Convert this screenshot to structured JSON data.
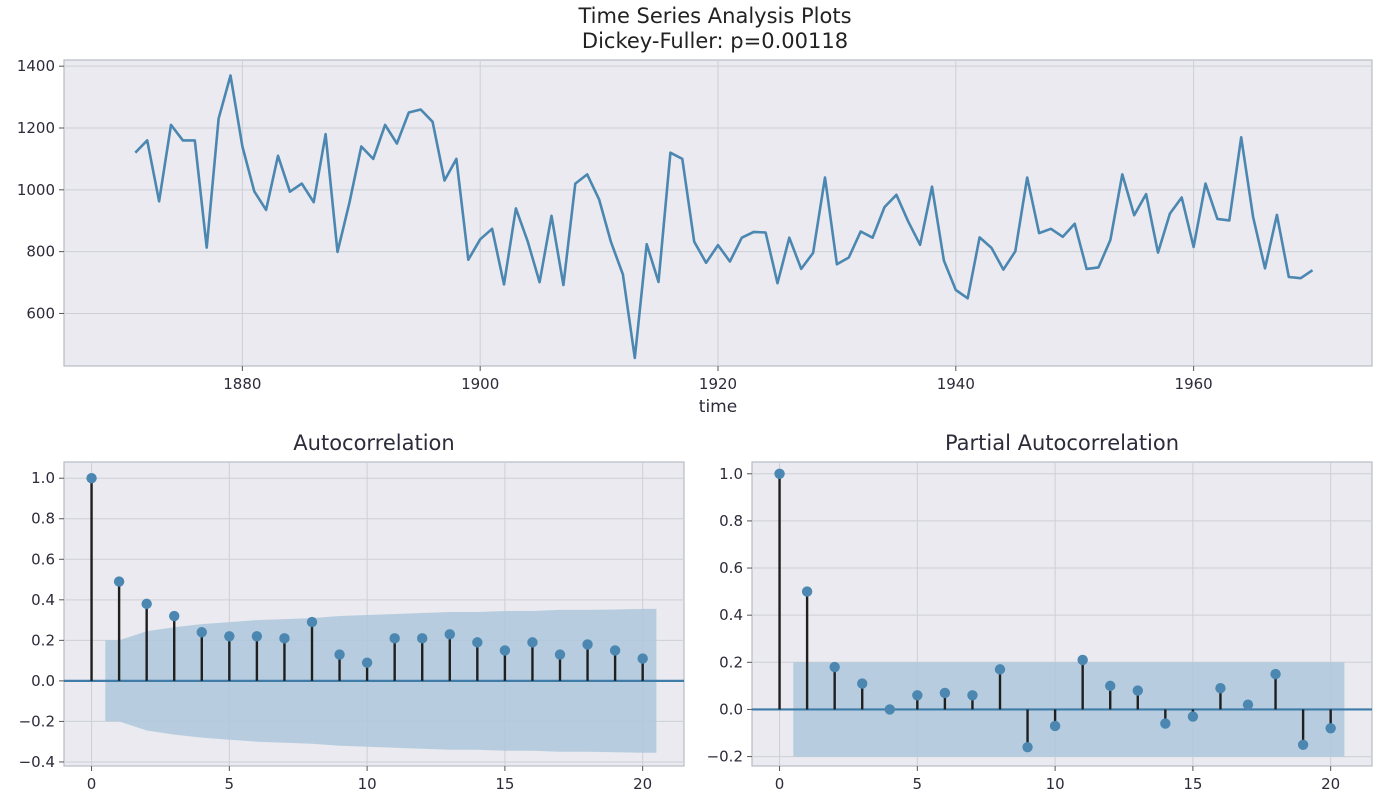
{
  "figure": {
    "title": "Time Series Analysis Plots",
    "subtitle": "Dickey-Fuller: p=0.00118"
  },
  "colors": {
    "line": "#4b87b0",
    "stem": "#1f1f1f",
    "marker": "#4b87b0",
    "band": "#aec8dc",
    "panel_bg": "#eaeaf0",
    "grid": "#cdd0d6",
    "zero_line": "#3f7ca8"
  },
  "chart_data": [
    {
      "type": "line",
      "title": "",
      "xlabel": "time",
      "ylabel": "",
      "xlim": [
        1865,
        1975
      ],
      "ylim": [
        430,
        1420
      ],
      "xticks": [
        1880,
        1900,
        1920,
        1940,
        1960
      ],
      "yticks": [
        600,
        800,
        1000,
        1200,
        1400
      ],
      "grid": true,
      "x": [
        1871,
        1872,
        1873,
        1874,
        1875,
        1876,
        1877,
        1878,
        1879,
        1880,
        1881,
        1882,
        1883,
        1884,
        1885,
        1886,
        1887,
        1888,
        1889,
        1890,
        1891,
        1892,
        1893,
        1894,
        1895,
        1896,
        1897,
        1898,
        1899,
        1900,
        1901,
        1902,
        1903,
        1904,
        1905,
        1906,
        1907,
        1908,
        1909,
        1910,
        1911,
        1912,
        1913,
        1914,
        1915,
        1916,
        1917,
        1918,
        1919,
        1920,
        1921,
        1922,
        1923,
        1924,
        1925,
        1926,
        1927,
        1928,
        1929,
        1930,
        1931,
        1932,
        1933,
        1934,
        1935,
        1936,
        1937,
        1938,
        1939,
        1940,
        1941,
        1942,
        1943,
        1944,
        1945,
        1946,
        1947,
        1948,
        1949,
        1950,
        1951,
        1952,
        1953,
        1954,
        1955,
        1956,
        1957,
        1958,
        1959,
        1960,
        1961,
        1962,
        1963,
        1964,
        1965,
        1966,
        1967,
        1968,
        1969,
        1970
      ],
      "values": [
        1120,
        1160,
        963,
        1210,
        1160,
        1160,
        813,
        1230,
        1370,
        1140,
        995,
        935,
        1110,
        994,
        1020,
        960,
        1180,
        799,
        958,
        1140,
        1100,
        1210,
        1150,
        1250,
        1260,
        1220,
        1030,
        1100,
        774,
        840,
        874,
        694,
        940,
        833,
        701,
        916,
        692,
        1020,
        1050,
        969,
        831,
        726,
        456,
        824,
        702,
        1120,
        1100,
        832,
        764,
        821,
        768,
        845,
        864,
        862,
        698,
        845,
        744,
        796,
        1040,
        759,
        781,
        865,
        845,
        944,
        984,
        897,
        822,
        1010,
        771,
        676,
        649,
        846,
        812,
        742,
        801,
        1040,
        860,
        874,
        848,
        890,
        744,
        749,
        838,
        1050,
        918,
        986,
        797,
        923,
        975,
        815,
        1020,
        906,
        901,
        1170,
        912,
        746,
        919,
        718,
        714,
        740
      ]
    },
    {
      "type": "bar",
      "title": "Autocorrelation",
      "xlabel": "",
      "ylabel": "",
      "xlim": [
        -1,
        21.5
      ],
      "ylim": [
        -0.42,
        1.08
      ],
      "xticks": [
        0,
        5,
        10,
        15,
        20
      ],
      "yticks": [
        -0.4,
        -0.2,
        0.0,
        0.2,
        0.4,
        0.6,
        0.8,
        1.0
      ],
      "grid": true,
      "lags": [
        0,
        1,
        2,
        3,
        4,
        5,
        6,
        7,
        8,
        9,
        10,
        11,
        12,
        13,
        14,
        15,
        16,
        17,
        18,
        19,
        20
      ],
      "values": [
        1.0,
        0.49,
        0.38,
        0.32,
        0.24,
        0.22,
        0.22,
        0.21,
        0.29,
        0.13,
        0.09,
        0.21,
        0.21,
        0.23,
        0.19,
        0.15,
        0.19,
        0.13,
        0.18,
        0.15,
        0.11
      ],
      "confidence_band": {
        "lags": [
          0.5,
          1,
          2,
          3,
          4,
          5,
          6,
          7,
          8,
          9,
          10,
          11,
          12,
          13,
          14,
          15,
          16,
          17,
          18,
          19,
          20,
          20.5
        ],
        "upper": [
          0.2,
          0.2,
          0.245,
          0.265,
          0.28,
          0.29,
          0.3,
          0.305,
          0.31,
          0.32,
          0.325,
          0.33,
          0.335,
          0.34,
          0.34,
          0.345,
          0.345,
          0.35,
          0.35,
          0.352,
          0.355,
          0.355
        ],
        "lower": [
          -0.2,
          -0.2,
          -0.245,
          -0.265,
          -0.28,
          -0.29,
          -0.3,
          -0.305,
          -0.31,
          -0.32,
          -0.325,
          -0.33,
          -0.335,
          -0.34,
          -0.34,
          -0.345,
          -0.345,
          -0.35,
          -0.35,
          -0.352,
          -0.355,
          -0.355
        ]
      }
    },
    {
      "type": "bar",
      "title": "Partial Autocorrelation",
      "xlabel": "",
      "ylabel": "",
      "xlim": [
        -1,
        21.5
      ],
      "ylim": [
        -0.24,
        1.05
      ],
      "xticks": [
        0,
        5,
        10,
        15,
        20
      ],
      "yticks": [
        -0.2,
        0.0,
        0.2,
        0.4,
        0.6,
        0.8,
        1.0
      ],
      "grid": true,
      "lags": [
        0,
        1,
        2,
        3,
        4,
        5,
        6,
        7,
        8,
        9,
        10,
        11,
        12,
        13,
        14,
        15,
        16,
        17,
        18,
        19,
        20
      ],
      "values": [
        1.0,
        0.5,
        0.18,
        0.11,
        0.0,
        0.06,
        0.07,
        0.06,
        0.17,
        -0.16,
        -0.07,
        0.21,
        0.1,
        0.08,
        -0.06,
        -0.03,
        0.09,
        0.02,
        0.15,
        -0.15,
        -0.08
      ],
      "confidence_band": {
        "lags": [
          0.5,
          20.5
        ],
        "upper": [
          0.2,
          0.2
        ],
        "lower": [
          -0.2,
          -0.2
        ]
      }
    }
  ]
}
